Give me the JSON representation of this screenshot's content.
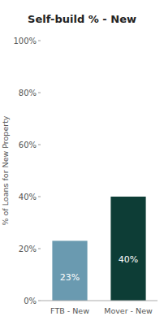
{
  "chart_data": {
    "type": "bar",
    "title": "Self-build % - New",
    "categories": [
      "FTB - New",
      "Mover - New"
    ],
    "values": [
      23,
      40
    ],
    "value_labels": [
      "23%",
      "40%"
    ],
    "data_labels": true,
    "colors": [
      "#6a9ab0",
      "#0d3d36"
    ],
    "ylabel": "% of Loans for New Property",
    "ylim": [
      0,
      100
    ],
    "yticks": [
      {
        "value": 0,
        "label": "0%"
      },
      {
        "value": 20,
        "label": "20%"
      },
      {
        "value": 40,
        "label": "40%"
      },
      {
        "value": 60,
        "label": "60%"
      },
      {
        "value": 80,
        "label": "80%"
      },
      {
        "value": 100,
        "label": "100%"
      }
    ],
    "grid": false
  }
}
